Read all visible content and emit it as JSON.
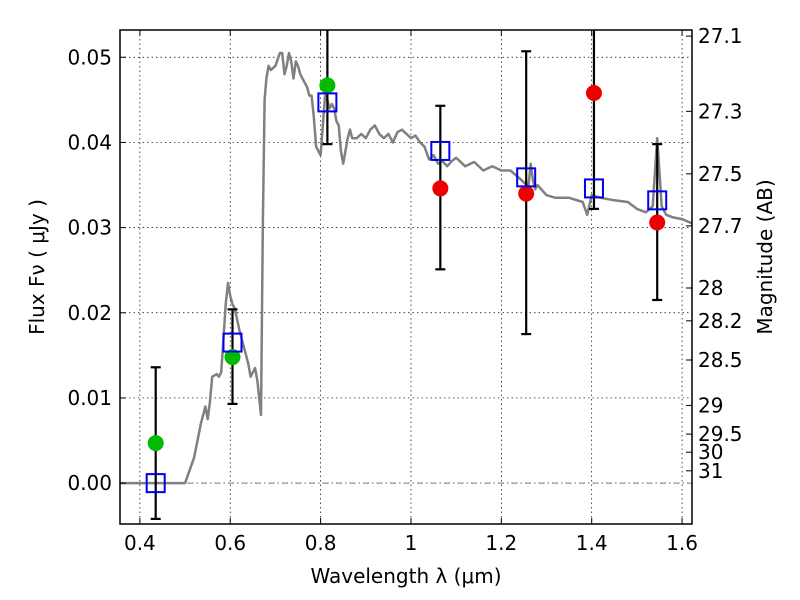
{
  "chart_data": {
    "type": "scatter",
    "title": "",
    "xlabel": "Wavelength  λ (μm)",
    "ylabel": "Flux  Fν  ( μJy )",
    "ylabel_right": "Magnitude (AB)",
    "xlim": [
      0.356,
      1.622
    ],
    "ylim": [
      -0.0048,
      0.0532
    ],
    "grid": true,
    "x_ticks": [
      0.4,
      0.6,
      0.8,
      1.0,
      1.2,
      1.4,
      1.6
    ],
    "x_tick_labels": [
      "0.4",
      "0.6",
      "0.8",
      "1",
      "1.2",
      "1.4",
      "1.6"
    ],
    "y_ticks": [
      0.0,
      0.01,
      0.02,
      0.03,
      0.04,
      0.05
    ],
    "y_tick_labels": [
      "0.00",
      "0.01",
      "0.02",
      "0.03",
      "0.04",
      "0.05"
    ],
    "mag_ticks": [
      27.1,
      27.3,
      27.5,
      27.7,
      28,
      28.2,
      28.5,
      29,
      29.5,
      30,
      31
    ],
    "mag_tick_labels": [
      "27.1",
      "27.3",
      "27.5",
      "27.7",
      "28",
      "28.2",
      "28.5",
      "29",
      "29.5",
      "30",
      "31"
    ],
    "mag_zeropoint": 23.9,
    "colors": {
      "spectrum": "#808080",
      "model_box": "#0000ee",
      "detected": "#00bb00",
      "upper": "#ee0000",
      "errorbar": "#000000",
      "zero_line": "#555555"
    },
    "series": [
      {
        "name": "model spectrum",
        "type": "line",
        "x": [
          0.356,
          0.4,
          0.45,
          0.49,
          0.5,
          0.52,
          0.535,
          0.545,
          0.55,
          0.555,
          0.56,
          0.57,
          0.575,
          0.58,
          0.585,
          0.59,
          0.595,
          0.6,
          0.605,
          0.61,
          0.62,
          0.63,
          0.635,
          0.64,
          0.645,
          0.65,
          0.655,
          0.66,
          0.668,
          0.672,
          0.676,
          0.68,
          0.685,
          0.69,
          0.7,
          0.71,
          0.715,
          0.72,
          0.725,
          0.73,
          0.735,
          0.74,
          0.745,
          0.75,
          0.755,
          0.76,
          0.77,
          0.775,
          0.78,
          0.785,
          0.79,
          0.8,
          0.81,
          0.815,
          0.82,
          0.825,
          0.83,
          0.835,
          0.84,
          0.845,
          0.85,
          0.86,
          0.865,
          0.87,
          0.88,
          0.89,
          0.9,
          0.91,
          0.92,
          0.93,
          0.94,
          0.95,
          0.96,
          0.97,
          0.98,
          0.99,
          1.0,
          1.01,
          1.02,
          1.03,
          1.04,
          1.05,
          1.06,
          1.07,
          1.08,
          1.09,
          1.1,
          1.12,
          1.14,
          1.16,
          1.18,
          1.2,
          1.22,
          1.24,
          1.26,
          1.265,
          1.27,
          1.275,
          1.28,
          1.3,
          1.32,
          1.35,
          1.38,
          1.39,
          1.4,
          1.42,
          1.45,
          1.48,
          1.5,
          1.52,
          1.535,
          1.545,
          1.555,
          1.565,
          1.58,
          1.6,
          1.622
        ],
        "y": [
          0.0,
          0.0,
          0.0,
          0.0,
          0.0,
          0.003,
          0.007,
          0.009,
          0.0075,
          0.0095,
          0.0125,
          0.0128,
          0.0125,
          0.013,
          0.017,
          0.021,
          0.0235,
          0.022,
          0.021,
          0.0205,
          0.018,
          0.016,
          0.015,
          0.014,
          0.0125,
          0.013,
          0.0135,
          0.012,
          0.008,
          0.03,
          0.045,
          0.0475,
          0.049,
          0.0485,
          0.049,
          0.0505,
          0.0505,
          0.048,
          0.049,
          0.0505,
          0.0495,
          0.0475,
          0.0495,
          0.049,
          0.048,
          0.0475,
          0.0465,
          0.0455,
          0.0455,
          0.043,
          0.0395,
          0.0385,
          0.0455,
          0.045,
          0.044,
          0.0445,
          0.044,
          0.0425,
          0.042,
          0.039,
          0.0375,
          0.0405,
          0.0415,
          0.0405,
          0.0405,
          0.041,
          0.0405,
          0.0415,
          0.042,
          0.041,
          0.0405,
          0.041,
          0.04,
          0.0412,
          0.0415,
          0.041,
          0.0405,
          0.0408,
          0.04,
          0.0395,
          0.038,
          0.0385,
          0.0375,
          0.0378,
          0.0372,
          0.0378,
          0.0382,
          0.0372,
          0.0377,
          0.0367,
          0.0372,
          0.0367,
          0.0367,
          0.0358,
          0.0348,
          0.0375,
          0.0355,
          0.0345,
          0.035,
          0.0338,
          0.0335,
          0.0335,
          0.033,
          0.0315,
          0.0338,
          0.0335,
          0.0332,
          0.033,
          0.0322,
          0.0318,
          0.0325,
          0.0405,
          0.0325,
          0.0315,
          0.0312,
          0.031,
          0.0305
        ]
      },
      {
        "name": "model band flux",
        "type": "open-square",
        "x": [
          0.435,
          0.605,
          0.815,
          1.065,
          1.255,
          1.405,
          1.545
        ],
        "y": [
          0.0,
          0.0165,
          0.0447,
          0.039,
          0.0359,
          0.0346,
          0.0332
        ]
      },
      {
        "name": "detections",
        "type": "filled-circle",
        "color_key": "detected",
        "x": [
          0.435,
          0.605,
          0.815
        ],
        "y": [
          0.0047,
          0.0148,
          0.0467
        ]
      },
      {
        "name": "non-detections",
        "type": "filled-circle",
        "color_key": "upper",
        "x": [
          1.065,
          1.255,
          1.405,
          1.545
        ],
        "y": [
          0.0346,
          0.034,
          0.0458,
          0.0306
        ]
      },
      {
        "name": "error bars",
        "type": "errorbar",
        "x": [
          0.435,
          0.605,
          0.815,
          1.065,
          1.255,
          1.405,
          1.545
        ],
        "low": [
          -0.0042,
          0.0093,
          0.0398,
          0.0251,
          0.0175,
          0.0322,
          0.0215
        ],
        "high": [
          0.0136,
          0.0204,
          0.056,
          0.0443,
          0.0507,
          0.056,
          0.0398
        ]
      }
    ]
  }
}
